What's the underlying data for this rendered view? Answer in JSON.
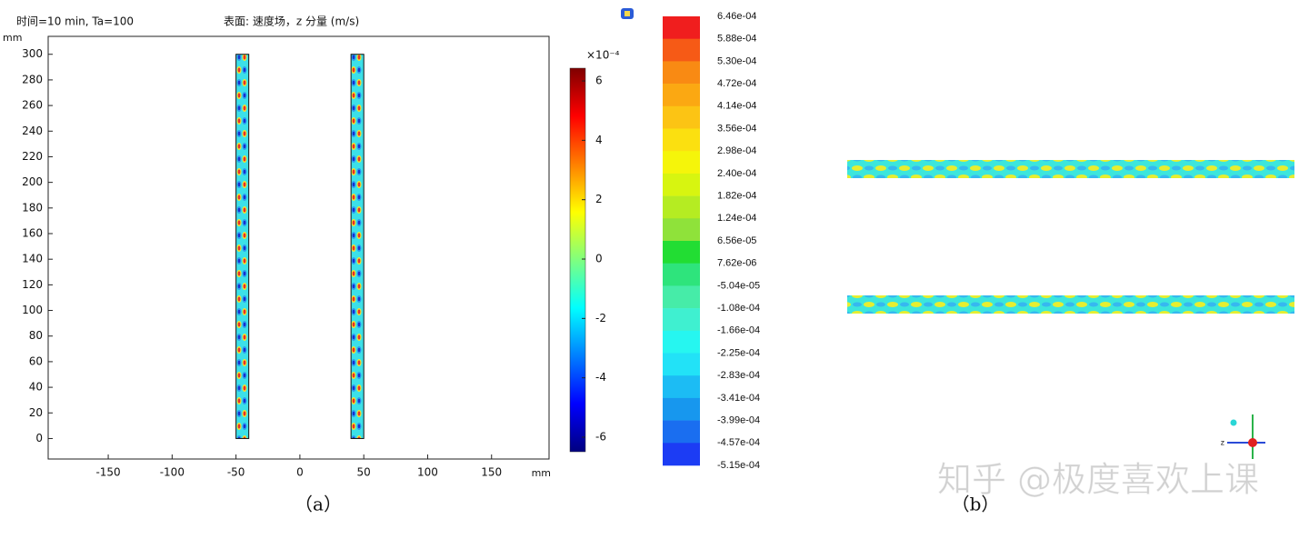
{
  "chart_data": [
    {
      "type": "surface",
      "subtitle": "时间=10 min, Ta=100",
      "title": "表面: 速度场，z 分量 (m/s)",
      "xlabel": "mm",
      "ylabel": "mm",
      "xlim": [
        -197,
        195
      ],
      "xticks": [
        -150,
        -100,
        -50,
        0,
        50,
        100,
        150
      ],
      "ylim": [
        -16,
        314
      ],
      "yticks": [
        0,
        20,
        40,
        60,
        80,
        100,
        120,
        140,
        160,
        180,
        200,
        220,
        240,
        260,
        280,
        300
      ],
      "domains": [
        {
          "x": [
            -50,
            -40
          ],
          "y": [
            0,
            300
          ]
        },
        {
          "x": [
            40,
            50
          ],
          "y": [
            0,
            300
          ]
        }
      ],
      "colorbar": {
        "colormap": "jet",
        "clim": [
          -6.49,
          6.43
        ],
        "ticks": [
          -6,
          -4,
          -2,
          0,
          2,
          4,
          6
        ],
        "multiplier": "×10⁻⁴"
      },
      "caption": "（a）"
    },
    {
      "type": "contour-legend",
      "levels": [
        {
          "value": 0.000646,
          "label": "6.46e-04"
        },
        {
          "value": 0.000588,
          "label": "5.88e-04"
        },
        {
          "value": 0.00053,
          "label": "5.30e-04"
        },
        {
          "value": 0.000472,
          "label": "4.72e-04"
        },
        {
          "value": 0.000414,
          "label": "4.14e-04"
        },
        {
          "value": 0.000356,
          "label": "3.56e-04"
        },
        {
          "value": 0.000298,
          "label": "2.98e-04"
        },
        {
          "value": 0.00024,
          "label": "2.40e-04"
        },
        {
          "value": 0.000182,
          "label": "1.82e-04"
        },
        {
          "value": 0.000124,
          "label": "1.24e-04"
        },
        {
          "value": 6.56e-05,
          "label": "6.56e-05"
        },
        {
          "value": 7.62e-06,
          "label": "7.62e-06"
        },
        {
          "value": -5.04e-05,
          "label": "-5.04e-05"
        },
        {
          "value": -0.000108,
          "label": "-1.08e-04"
        },
        {
          "value": -0.000166,
          "label": "-1.66e-04"
        },
        {
          "value": -0.000225,
          "label": "-2.25e-04"
        },
        {
          "value": -0.000283,
          "label": "-2.83e-04"
        },
        {
          "value": -0.000341,
          "label": "-3.41e-04"
        },
        {
          "value": -0.000399,
          "label": "-3.99e-04"
        },
        {
          "value": -0.000457,
          "label": "-4.57e-04"
        },
        {
          "value": -0.000515,
          "label": "-5.15e-04"
        }
      ],
      "colors": [
        "#f01e1e",
        "#f65a16",
        "#f98a13",
        "#fba812",
        "#fcc414",
        "#fbe010",
        "#f5f50a",
        "#d7f510",
        "#b5ec22",
        "#8fe23a",
        "#22dd33",
        "#2ee47c",
        "#46eca8",
        "#3ff0d0",
        "#26f6f0",
        "#22e2f7",
        "#1cbcf4",
        "#1797ee",
        "#1a6ef0",
        "#1c3cf4"
      ],
      "caption": "（b）",
      "watermark": "知乎 @极度喜欢上课"
    }
  ]
}
